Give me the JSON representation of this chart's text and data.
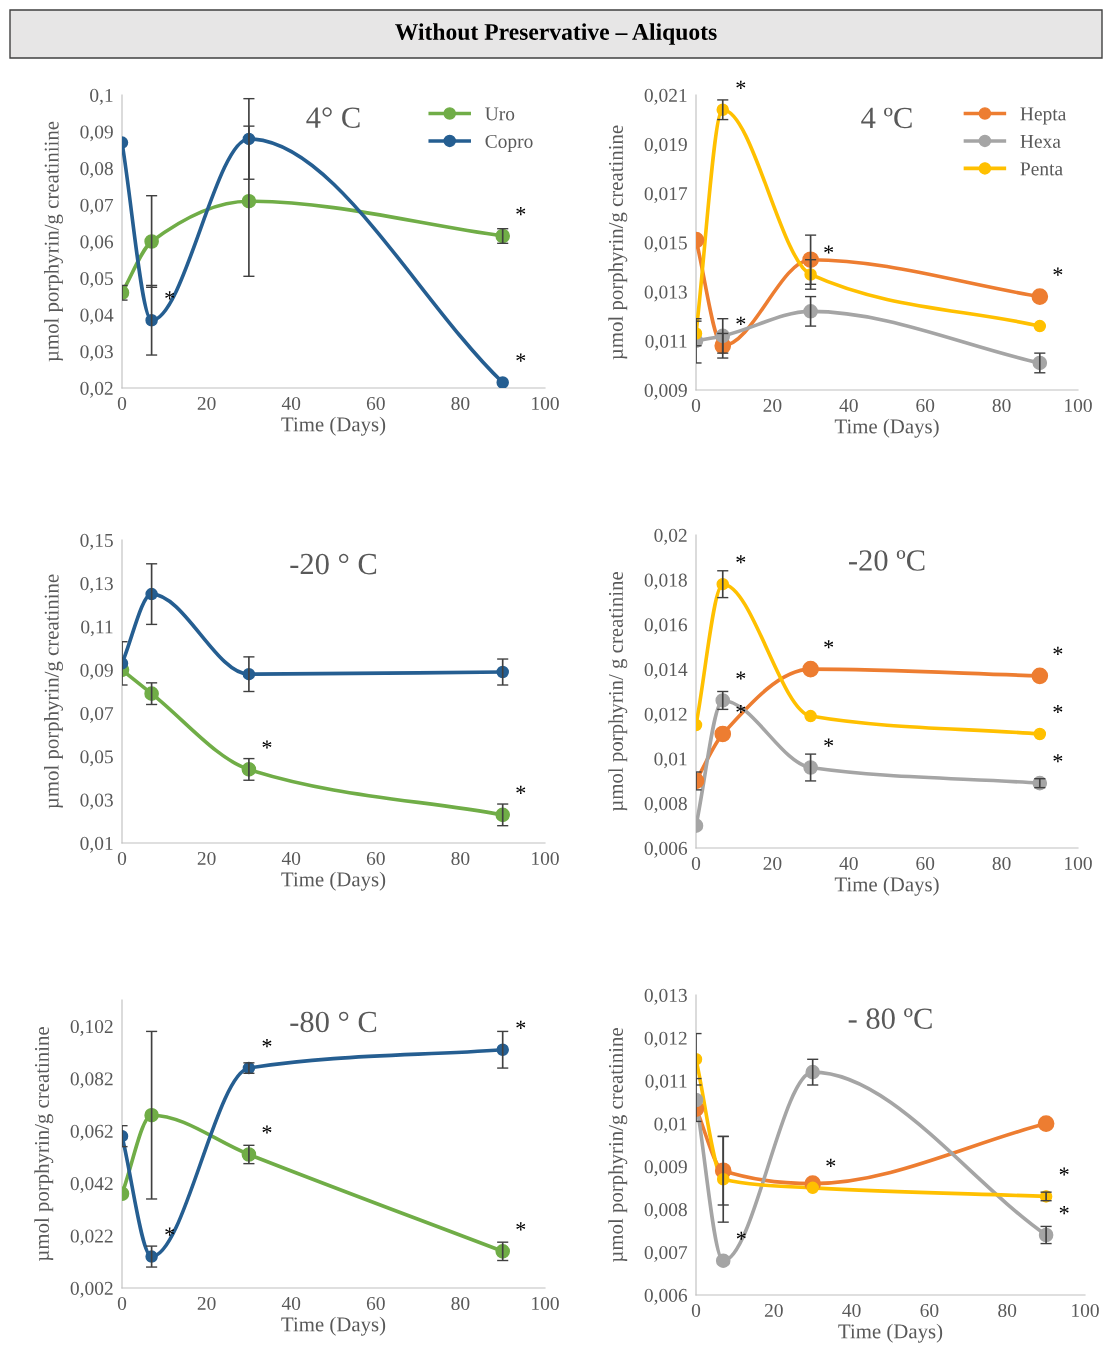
{
  "chart_data": [
    {
      "type": "other",
      "title": "Without Preservative – Aliquots"
    },
    {
      "type": "line",
      "title": "4° C",
      "xlabel": "Time (Days)",
      "ylabel": "µmol porphyrin/g creatiniine",
      "x": [
        0,
        7,
        30,
        90
      ],
      "xlim": [
        0,
        100
      ],
      "xticks": [
        0,
        20,
        40,
        60,
        80,
        100
      ],
      "ylim": [
        0.02,
        0.1
      ],
      "yticks": [
        {
          "value": 0.02,
          "label": "0,02"
        },
        {
          "value": 0.03,
          "label": "0,03"
        },
        {
          "value": 0.04,
          "label": "0,04"
        },
        {
          "value": 0.05,
          "label": "0,05"
        },
        {
          "value": 0.06,
          "label": "0,06"
        },
        {
          "value": 0.07,
          "label": "0,07"
        },
        {
          "value": 0.08,
          "label": "0,08"
        },
        {
          "value": 0.09,
          "label": "0,09"
        },
        {
          "value": 0.1,
          "label": "0,1"
        }
      ],
      "series": [
        {
          "name": "Uro",
          "color": "#70ad47",
          "values": [
            0.046,
            0.06,
            0.071,
            0.0615
          ],
          "errors": [
            0.002,
            0.0125,
            0.0205,
            0.002
          ]
        },
        {
          "name": "Copro",
          "color": "#255e91",
          "values": [
            0.087,
            0.0385,
            0.088,
            0.0215
          ],
          "errors": [
            null,
            0.0095,
            0.011,
            null
          ]
        }
      ],
      "annotations": [
        {
          "text": "*",
          "x": 7,
          "y": 0.0385
        },
        {
          "text": "*",
          "x": 90,
          "y": 0.0615
        },
        {
          "text": "*",
          "x": 90,
          "y": 0.0215
        }
      ],
      "marker": "circle",
      "line_style": "solid",
      "grid": false,
      "legend": "top right"
    },
    {
      "type": "line",
      "title": "4 ºC",
      "xlabel": "Time (Days)",
      "ylabel": "µmol porphyrin/g creatinine",
      "x": [
        0,
        7,
        30,
        90
      ],
      "xlim": [
        0,
        100
      ],
      "xticks": [
        0,
        20,
        40,
        60,
        80,
        100
      ],
      "ylim": [
        0.009,
        0.021
      ],
      "yticks": [
        {
          "value": 0.009,
          "label": "0,009"
        },
        {
          "value": 0.011,
          "label": "0,011"
        },
        {
          "value": 0.013,
          "label": "0,013"
        },
        {
          "value": 0.015,
          "label": "0,015"
        },
        {
          "value": 0.017,
          "label": "0,017"
        },
        {
          "value": 0.019,
          "label": "0,019"
        },
        {
          "value": 0.021,
          "label": "0,021"
        }
      ],
      "series": [
        {
          "name": "Hepta",
          "color": "#ed7d31",
          "values": [
            0.0151,
            0.0108,
            0.0143,
            0.0128
          ],
          "errors": [
            null,
            0.0005,
            0.001,
            null
          ]
        },
        {
          "name": "Hexa",
          "color": "#a5a5a5",
          "values": [
            0.011,
            0.0112,
            0.0122,
            0.0101
          ],
          "errors": [
            0.0009,
            0.0007,
            0.0006,
            0.0004
          ]
        },
        {
          "name": "Penta",
          "color": "#ffc000",
          "values": [
            0.0113,
            0.0204,
            0.0137,
            0.0116
          ],
          "errors": [
            0.0005,
            0.0004,
            0.0006,
            null
          ]
        }
      ],
      "annotations": [
        {
          "text": "*",
          "x": 7,
          "y": 0.0204
        },
        {
          "text": "*",
          "x": 7,
          "y": 0.0108
        },
        {
          "text": "*",
          "x": 30,
          "y": 0.0137
        },
        {
          "text": "*",
          "x": 90,
          "y": 0.0128
        }
      ],
      "marker": "circle",
      "line_style": "solid",
      "grid": false,
      "legend": "top right"
    },
    {
      "type": "line",
      "title": "-20 ° C",
      "xlabel": "Time (Days)",
      "ylabel": "µmol porphyrin/g creatinine",
      "x": [
        0,
        7,
        30,
        90
      ],
      "xlim": [
        0,
        100
      ],
      "xticks": [
        0,
        20,
        40,
        60,
        80,
        100
      ],
      "ylim": [
        0.01,
        0.15
      ],
      "yticks": [
        {
          "value": 0.01,
          "label": "0,01"
        },
        {
          "value": 0.03,
          "label": "0,03"
        },
        {
          "value": 0.05,
          "label": "0,05"
        },
        {
          "value": 0.07,
          "label": "0,07"
        },
        {
          "value": 0.09,
          "label": "0,09"
        },
        {
          "value": 0.11,
          "label": "0,11"
        },
        {
          "value": 0.13,
          "label": "0,13"
        },
        {
          "value": 0.15,
          "label": "0,15"
        }
      ],
      "series": [
        {
          "color": "#70ad47",
          "values": [
            0.09,
            0.079,
            0.044,
            0.023
          ],
          "errors": [
            null,
            0.005,
            0.005,
            0.005
          ]
        },
        {
          "color": "#255e91",
          "values": [
            0.093,
            0.125,
            0.088,
            0.089
          ],
          "errors": [
            0.01,
            0.014,
            0.008,
            0.006
          ]
        }
      ],
      "annotations": [
        {
          "text": "*",
          "x": 30,
          "y": 0.044
        },
        {
          "text": "*",
          "x": 90,
          "y": 0.023
        }
      ],
      "marker": "circle",
      "line_style": "solid",
      "grid": false
    },
    {
      "type": "line",
      "title": "-20 ºC",
      "xlabel": "Time (Days)",
      "ylabel": "µmol porphyrin/ g creatinine",
      "x": [
        0,
        7,
        30,
        90
      ],
      "xlim": [
        0,
        100
      ],
      "xticks": [
        0,
        20,
        40,
        60,
        80,
        100
      ],
      "ylim": [
        0.006,
        0.02
      ],
      "yticks": [
        {
          "value": 0.006,
          "label": "0,006"
        },
        {
          "value": 0.008,
          "label": "0,008"
        },
        {
          "value": 0.01,
          "label": "0,01"
        },
        {
          "value": 0.012,
          "label": "0,012"
        },
        {
          "value": 0.014,
          "label": "0,014"
        },
        {
          "value": 0.016,
          "label": "0,016"
        },
        {
          "value": 0.018,
          "label": "0,018"
        },
        {
          "value": 0.02,
          "label": "0,02"
        }
      ],
      "series": [
        {
          "color": "#ed7d31",
          "values": [
            0.009,
            0.0111,
            0.014,
            0.0137
          ],
          "errors": [
            0.0004,
            null,
            null,
            null
          ]
        },
        {
          "color": "#a5a5a5",
          "values": [
            0.007,
            0.0126,
            0.0096,
            0.0089
          ],
          "errors": [
            null,
            0.0004,
            0.0006,
            0.0002
          ]
        },
        {
          "color": "#ffc000",
          "values": [
            0.0115,
            0.0178,
            0.0119,
            0.0111
          ],
          "errors": [
            null,
            0.0006,
            null,
            null
          ]
        }
      ],
      "annotations": [
        {
          "text": "*",
          "x": 7,
          "y": 0.0178
        },
        {
          "text": "*",
          "x": 7,
          "y": 0.0126
        },
        {
          "text": "*",
          "x": 7,
          "y": 0.0111
        },
        {
          "text": "*",
          "x": 30,
          "y": 0.014
        },
        {
          "text": "*",
          "x": 30,
          "y": 0.0096
        },
        {
          "text": "*",
          "x": 90,
          "y": 0.0137
        },
        {
          "text": "*",
          "x": 90,
          "y": 0.0111
        },
        {
          "text": "*",
          "x": 90,
          "y": 0.0089
        }
      ],
      "marker": "circle",
      "line_style": "solid",
      "grid": false
    },
    {
      "type": "line",
      "title": "-80 ° C",
      "xlabel": "Time (Days)",
      "ylabel": "µmol porphyrin/g creatinine",
      "x": [
        0,
        7,
        30,
        90
      ],
      "xlim": [
        0,
        100
      ],
      "xticks": [
        0,
        20,
        40,
        60,
        80,
        100
      ],
      "ylim": [
        0.002,
        0.112
      ],
      "yticks": [
        {
          "value": 0.002,
          "label": "0,002"
        },
        {
          "value": 0.022,
          "label": "0,022"
        },
        {
          "value": 0.042,
          "label": "0,042"
        },
        {
          "value": 0.062,
          "label": "0,062"
        },
        {
          "value": 0.082,
          "label": "0,082"
        },
        {
          "value": 0.102,
          "label": "0,102"
        }
      ],
      "series": [
        {
          "color": "#70ad47",
          "values": [
            0.038,
            0.068,
            0.053,
            0.016
          ],
          "errors": [
            null,
            0.032,
            0.0035,
            0.0035
          ]
        },
        {
          "color": "#255e91",
          "values": [
            0.06,
            0.014,
            0.086,
            0.093
          ],
          "errors": [
            0.004,
            0.004,
            0.002,
            0.007
          ]
        }
      ],
      "annotations": [
        {
          "text": "*",
          "x": 7,
          "y": 0.014
        },
        {
          "text": "*",
          "x": 30,
          "y": 0.086
        },
        {
          "text": "*",
          "x": 30,
          "y": 0.053
        },
        {
          "text": "*",
          "x": 90,
          "y": 0.093
        },
        {
          "text": "*",
          "x": 90,
          "y": 0.016
        }
      ],
      "marker": "circle",
      "line_style": "solid",
      "grid": false
    },
    {
      "type": "line",
      "title": "- 80 ºC",
      "xlabel": "Time (Days)",
      "ylabel": "µmol porphyrin/g creatinine",
      "x": [
        0,
        7,
        30,
        90
      ],
      "xlim": [
        0,
        100
      ],
      "xticks": [
        0,
        20,
        40,
        60,
        80,
        100
      ],
      "ylim": [
        0.006,
        0.013
      ],
      "yticks": [
        {
          "value": 0.006,
          "label": "0,006"
        },
        {
          "value": 0.007,
          "label": "0,007"
        },
        {
          "value": 0.008,
          "label": "0,008"
        },
        {
          "value": 0.009,
          "label": "0,009"
        },
        {
          "value": 0.01,
          "label": "0,01"
        },
        {
          "value": 0.011,
          "label": "0,011"
        },
        {
          "value": 0.012,
          "label": "0,012"
        },
        {
          "value": 0.013,
          "label": "0,013"
        }
      ],
      "series": [
        {
          "color": "#ed7d31",
          "values": [
            0.01035,
            0.0089,
            0.0086,
            0.01
          ],
          "errors": [
            null,
            0.0008,
            null,
            null
          ]
        },
        {
          "color": "#a5a5a5",
          "values": [
            0.01055,
            0.0068,
            0.0112,
            0.0074
          ],
          "errors": [
            0.0005,
            null,
            0.0003,
            0.0002
          ]
        },
        {
          "color": "#ffc000",
          "values": [
            0.0115,
            0.0087,
            0.0085,
            0.0083
          ],
          "errors": [
            0.0006,
            0.001,
            null,
            0.0001
          ]
        }
      ],
      "annotations": [
        {
          "text": "*",
          "x": 7,
          "y": 0.0068
        },
        {
          "text": "*",
          "x": 30,
          "y": 0.0085
        },
        {
          "text": "*",
          "x": 90,
          "y": 0.0083
        },
        {
          "text": "*",
          "x": 90,
          "y": 0.0074
        }
      ],
      "marker": "circle",
      "line_style": "solid",
      "grid": false
    }
  ]
}
